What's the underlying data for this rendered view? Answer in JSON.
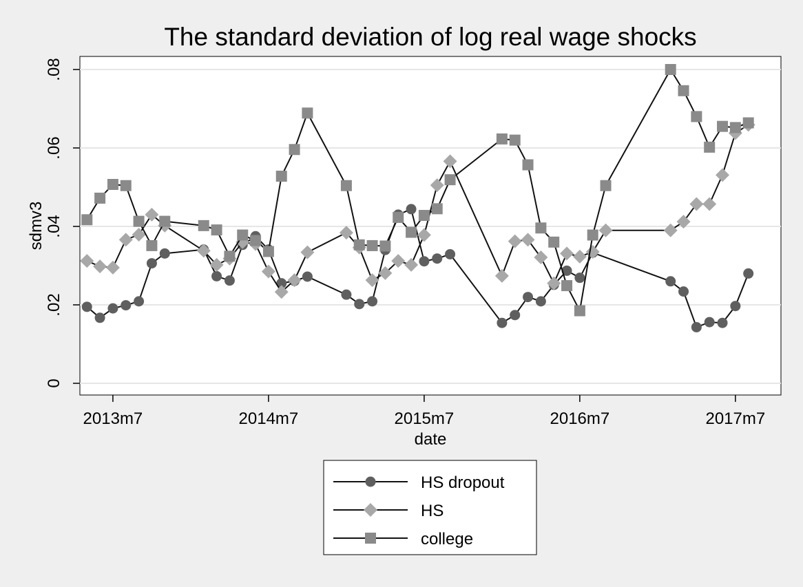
{
  "colors": {
    "page_background": "#efefef",
    "plot_background": "#ffffff",
    "gridline": "#e6e6e6",
    "series_line": "#111111",
    "hs_dropout_marker": "#5f5f5f",
    "hs_marker": "#a8a8a8",
    "college_marker": "#8a8a8a"
  },
  "chart_data": {
    "type": "line",
    "title": "The standard deviation of log real wage shocks",
    "xlabel": "date",
    "ylabel": "sdmv3",
    "xlim": [
      "2013m5",
      "2017m10"
    ],
    "ylim": [
      0,
      0.08
    ],
    "x_ticks": [
      "2013m7",
      "2014m7",
      "2015m7",
      "2016m7",
      "2017m7"
    ],
    "y_ticks": [
      0,
      0.02,
      0.04,
      0.06,
      0.08
    ],
    "y_tick_labels": [
      "0",
      ".02",
      ".04",
      ".06",
      ".08"
    ],
    "grid": true,
    "legend_position": "bottom",
    "series": [
      {
        "name": "HS dropout",
        "marker": "circle",
        "points": [
          [
            "2013m5",
            0.0195
          ],
          [
            "2013m6",
            0.0167
          ],
          [
            "2013m7",
            0.0191
          ],
          [
            "2013m8",
            0.0199
          ],
          [
            "2013m9",
            0.0209
          ],
          [
            "2013m10",
            0.0306
          ],
          [
            "2013m11",
            0.0331
          ],
          [
            "2014m2",
            0.0341
          ],
          [
            "2014m3",
            0.0273
          ],
          [
            "2014m4",
            0.0262
          ],
          [
            "2014m5",
            0.0353
          ],
          [
            "2014m6",
            0.0375
          ],
          [
            "2014m7",
            0.0341
          ],
          [
            "2014m8",
            0.0255
          ],
          [
            "2014m9",
            0.0261
          ],
          [
            "2014m10",
            0.0272
          ],
          [
            "2015m1",
            0.0226
          ],
          [
            "2015m2",
            0.0202
          ],
          [
            "2015m3",
            0.0209
          ],
          [
            "2015m4",
            0.034
          ],
          [
            "2015m5",
            0.043
          ],
          [
            "2015m6",
            0.0444
          ],
          [
            "2015m7",
            0.0311
          ],
          [
            "2015m8",
            0.0318
          ],
          [
            "2015m9",
            0.0329
          ],
          [
            "2016m1",
            0.0154
          ],
          [
            "2016m2",
            0.0174
          ],
          [
            "2016m3",
            0.022
          ],
          [
            "2016m4",
            0.0209
          ],
          [
            "2016m5",
            0.0251
          ],
          [
            "2016m6",
            0.0287
          ],
          [
            "2016m7",
            0.0269
          ],
          [
            "2016m8",
            0.0333
          ],
          [
            "2017m2",
            0.026
          ],
          [
            "2017m3",
            0.0234
          ],
          [
            "2017m4",
            0.0143
          ],
          [
            "2017m5",
            0.0156
          ],
          [
            "2017m6",
            0.0154
          ],
          [
            "2017m7",
            0.0197
          ],
          [
            "2017m8",
            0.028
          ]
        ]
      },
      {
        "name": "HS",
        "marker": "diamond",
        "points": [
          [
            "2013m5",
            0.0312
          ],
          [
            "2013m6",
            0.0298
          ],
          [
            "2013m7",
            0.0295
          ],
          [
            "2013m8",
            0.0366
          ],
          [
            "2013m9",
            0.0379
          ],
          [
            "2013m10",
            0.043
          ],
          [
            "2013m11",
            0.0402
          ],
          [
            "2014m2",
            0.0338
          ],
          [
            "2014m3",
            0.0302
          ],
          [
            "2014m4",
            0.0318
          ],
          [
            "2014m5",
            0.036
          ],
          [
            "2014m6",
            0.0355
          ],
          [
            "2014m7",
            0.0285
          ],
          [
            "2014m8",
            0.0233
          ],
          [
            "2014m9",
            0.0263
          ],
          [
            "2014m10",
            0.0334
          ],
          [
            "2015m1",
            0.0384
          ],
          [
            "2015m2",
            0.0346
          ],
          [
            "2015m3",
            0.0263
          ],
          [
            "2015m4",
            0.0281
          ],
          [
            "2015m5",
            0.0312
          ],
          [
            "2015m6",
            0.0302
          ],
          [
            "2015m7",
            0.0378
          ],
          [
            "2015m8",
            0.0505
          ],
          [
            "2015m9",
            0.0566
          ],
          [
            "2016m1",
            0.0274
          ],
          [
            "2016m2",
            0.0362
          ],
          [
            "2016m3",
            0.0366
          ],
          [
            "2016m4",
            0.0321
          ],
          [
            "2016m5",
            0.0255
          ],
          [
            "2016m6",
            0.0331
          ],
          [
            "2016m7",
            0.0323
          ],
          [
            "2016m8",
            0.0335
          ],
          [
            "2016m9",
            0.039
          ],
          [
            "2017m2",
            0.039
          ],
          [
            "2017m3",
            0.0412
          ],
          [
            "2017m4",
            0.0457
          ],
          [
            "2017m5",
            0.0457
          ],
          [
            "2017m6",
            0.0531
          ],
          [
            "2017m7",
            0.0638
          ],
          [
            "2017m8",
            0.0659
          ]
        ]
      },
      {
        "name": "college",
        "marker": "square",
        "points": [
          [
            "2013m5",
            0.0417
          ],
          [
            "2013m6",
            0.0472
          ],
          [
            "2013m7",
            0.0507
          ],
          [
            "2013m8",
            0.0504
          ],
          [
            "2013m9",
            0.0413
          ],
          [
            "2013m10",
            0.0351
          ],
          [
            "2013m11",
            0.0413
          ],
          [
            "2014m2",
            0.0402
          ],
          [
            "2014m3",
            0.0391
          ],
          [
            "2014m4",
            0.0324
          ],
          [
            "2014m5",
            0.0378
          ],
          [
            "2014m6",
            0.0364
          ],
          [
            "2014m7",
            0.0336
          ],
          [
            "2014m8",
            0.0528
          ],
          [
            "2014m9",
            0.0596
          ],
          [
            "2014m10",
            0.0689
          ],
          [
            "2015m1",
            0.0504
          ],
          [
            "2015m2",
            0.0353
          ],
          [
            "2015m3",
            0.0351
          ],
          [
            "2015m4",
            0.035
          ],
          [
            "2015m5",
            0.0423
          ],
          [
            "2015m6",
            0.0385
          ],
          [
            "2015m7",
            0.0428
          ],
          [
            "2015m8",
            0.0445
          ],
          [
            "2015m9",
            0.0519
          ],
          [
            "2016m1",
            0.0623
          ],
          [
            "2016m2",
            0.062
          ],
          [
            "2016m3",
            0.0557
          ],
          [
            "2016m4",
            0.0396
          ],
          [
            "2016m5",
            0.036
          ],
          [
            "2016m6",
            0.0249
          ],
          [
            "2016m7",
            0.0185
          ],
          [
            "2016m8",
            0.0378
          ],
          [
            "2016m9",
            0.0504
          ],
          [
            "2017m2",
            0.08
          ],
          [
            "2017m3",
            0.0746
          ],
          [
            "2017m4",
            0.068
          ],
          [
            "2017m5",
            0.0602
          ],
          [
            "2017m6",
            0.0655
          ],
          [
            "2017m7",
            0.0652
          ],
          [
            "2017m8",
            0.0664
          ]
        ]
      }
    ]
  }
}
